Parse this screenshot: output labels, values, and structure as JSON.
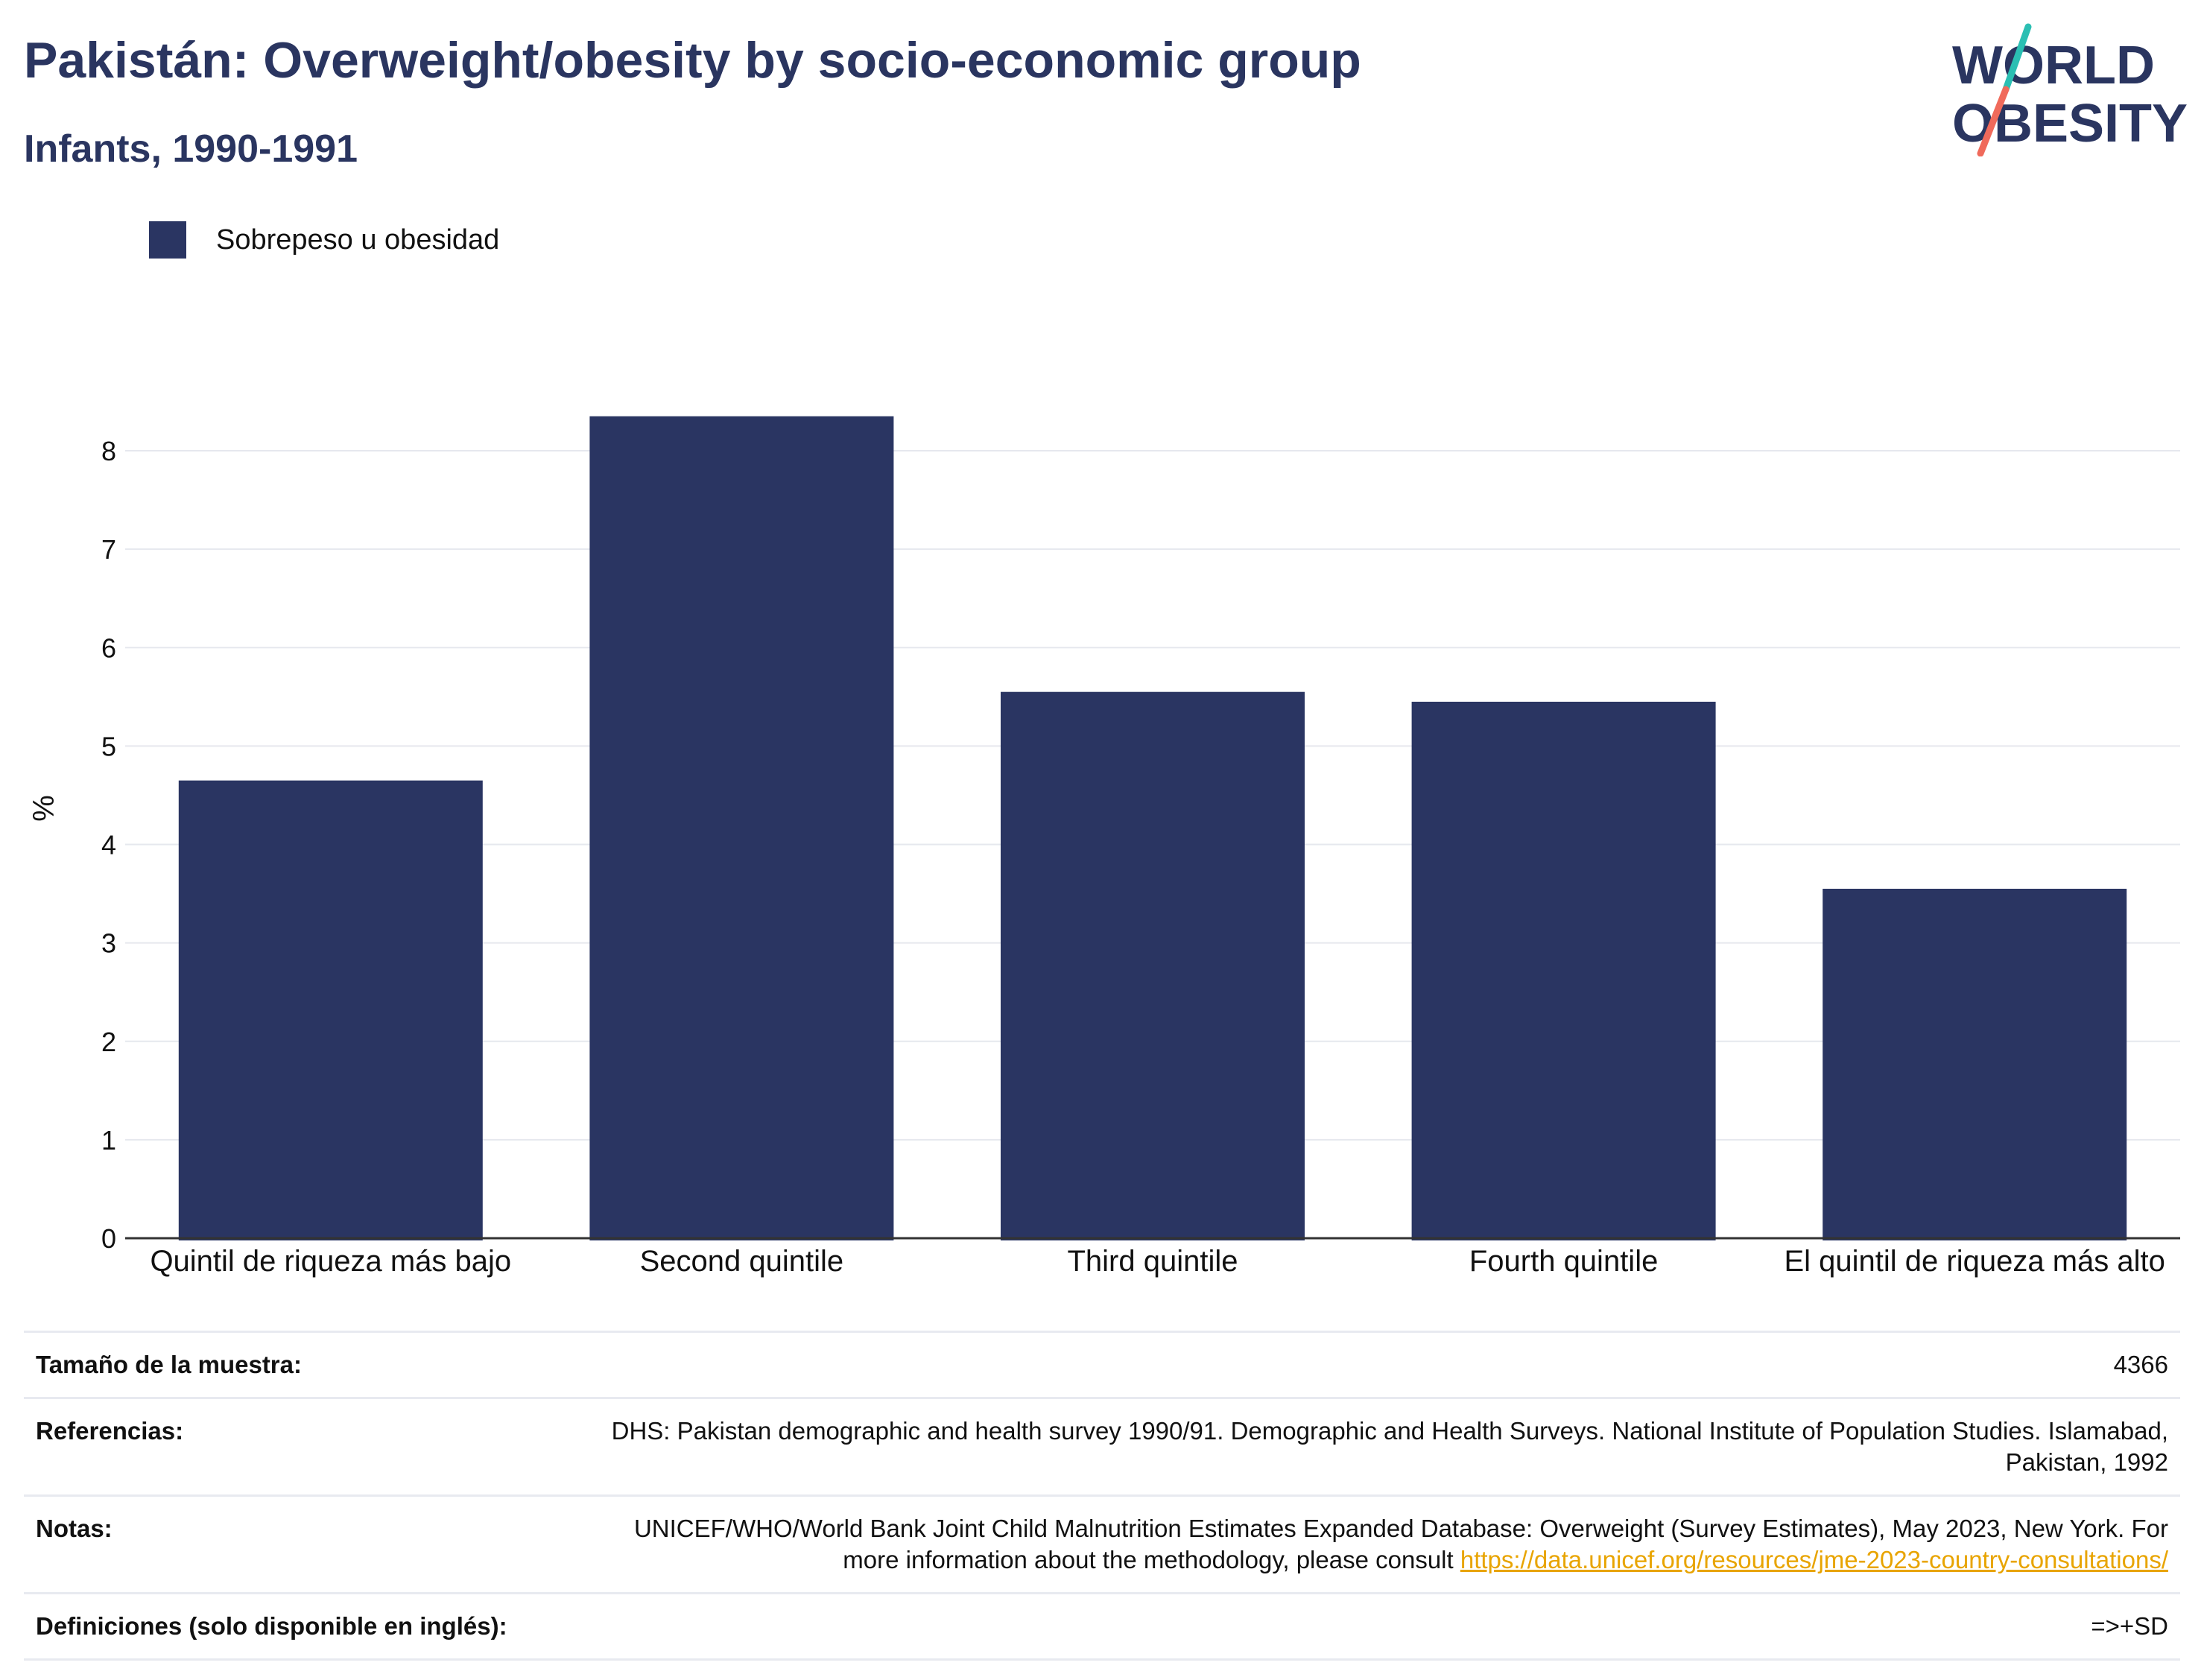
{
  "header": {
    "title": "Pakistán: Overweight/obesity by socio-economic group",
    "subtitle": "Infants, 1990-1991"
  },
  "logo": {
    "line1": "WORLD",
    "line2": "OBESITY",
    "text_color": "#2a3560",
    "accent_teal": "#2bbfb3",
    "accent_coral": "#f06a5b"
  },
  "legend": {
    "label": "Sobrepeso u obesidad",
    "color": "#2a3562"
  },
  "chart_data": {
    "type": "bar",
    "categories": [
      "Quintil de riqueza más bajo",
      "Second quintile",
      "Third quintile",
      "Fourth quintile",
      "El quintil de riqueza más alto"
    ],
    "series": [
      {
        "name": "Sobrepeso u obesidad",
        "values": [
          4.65,
          8.35,
          5.55,
          5.45,
          3.55
        ],
        "color": "#2a3562"
      }
    ],
    "ylabel": "%",
    "ylim": [
      0,
      8.6
    ],
    "yticks": [
      0,
      1,
      2,
      3,
      4,
      5,
      6,
      7,
      8
    ],
    "grid": true,
    "legend_position": "top-left"
  },
  "info": {
    "sample_label": "Tamaño de la muestra:",
    "sample_value": "4366",
    "references_label": "Referencias:",
    "references_value": "DHS: Pakistan demographic and health survey 1990/91. Demographic and Health Surveys. National Institute of Population Studies. Islamabad, Pakistan, 1992",
    "notes_label": "Notas:",
    "notes_text": "UNICEF/WHO/World Bank Joint Child Malnutrition Estimates Expanded Database: Overweight (Survey Estimates), May 2023, New York. For more information about the methodology, please consult ",
    "notes_link": "https://data.unicef.org/resources/jme-2023-country-consultations/",
    "definitions_label": "Definiciones (solo disponible en inglés):",
    "definitions_value": "=>+SD"
  }
}
